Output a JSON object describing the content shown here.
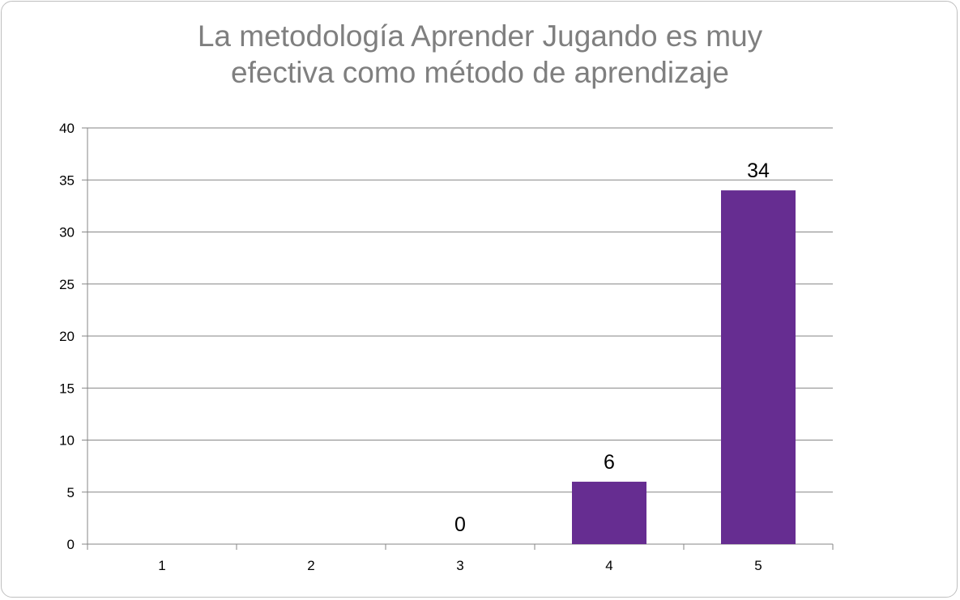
{
  "chart_data": {
    "type": "bar",
    "title": "La metodología Aprender Jugando es muy\nefectiva como método de aprendizaje",
    "categories": [
      "1",
      "2",
      "3",
      "4",
      "5"
    ],
    "values": [
      0,
      0,
      0,
      6,
      34
    ],
    "data_labels": [
      "",
      "",
      "0",
      "6",
      "34"
    ],
    "ylim": [
      0,
      40
    ],
    "yticks": [
      0,
      5,
      10,
      15,
      20,
      25,
      30,
      35,
      40
    ],
    "xlabel": "",
    "ylabel": "",
    "grid": true,
    "legend": "none",
    "colors": {
      "bar": "#662d91",
      "gridline": "#868686",
      "title": "#7f7f7f"
    }
  }
}
